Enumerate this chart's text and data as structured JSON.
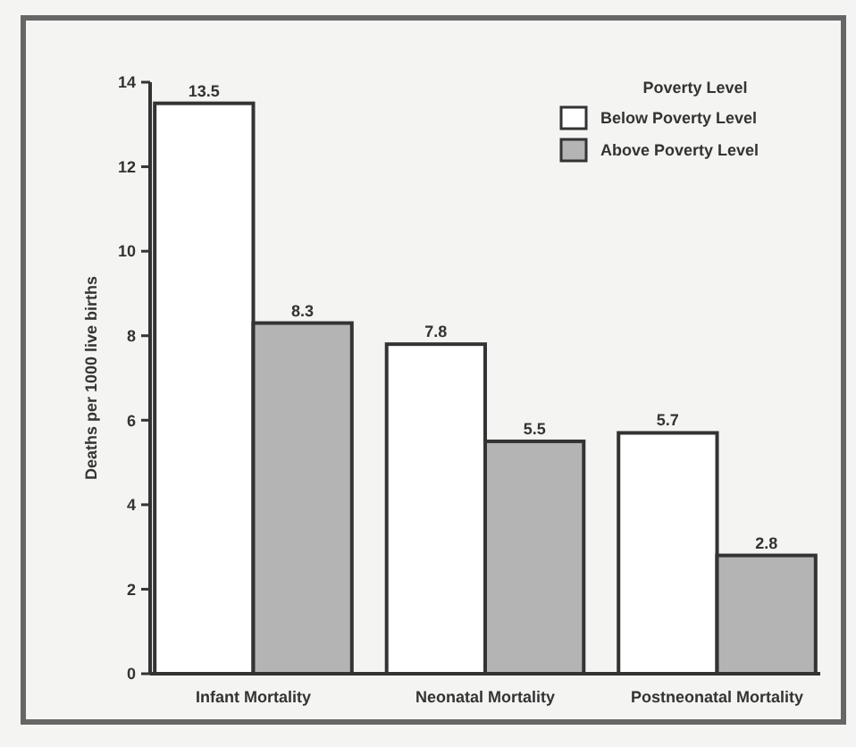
{
  "chart_data": {
    "type": "bar",
    "ylabel": "Deaths per 1000 live births",
    "legend_title": "Poverty Level",
    "categories": [
      "Infant Mortality",
      "Neonatal Mortality",
      "Postneonatal Mortality"
    ],
    "series": [
      {
        "name": "Below Poverty Level",
        "color": "#ffffff",
        "values": [
          13.5,
          7.8,
          5.7
        ]
      },
      {
        "name": "Above Poverty Level",
        "color": "#b4b4b4",
        "values": [
          8.3,
          5.5,
          2.8
        ]
      }
    ],
    "ylim": [
      0,
      14
    ],
    "yticks": [
      0,
      2,
      4,
      6,
      8,
      10,
      12,
      14
    ],
    "data_labels": true,
    "grid": false,
    "legend": "top right"
  }
}
